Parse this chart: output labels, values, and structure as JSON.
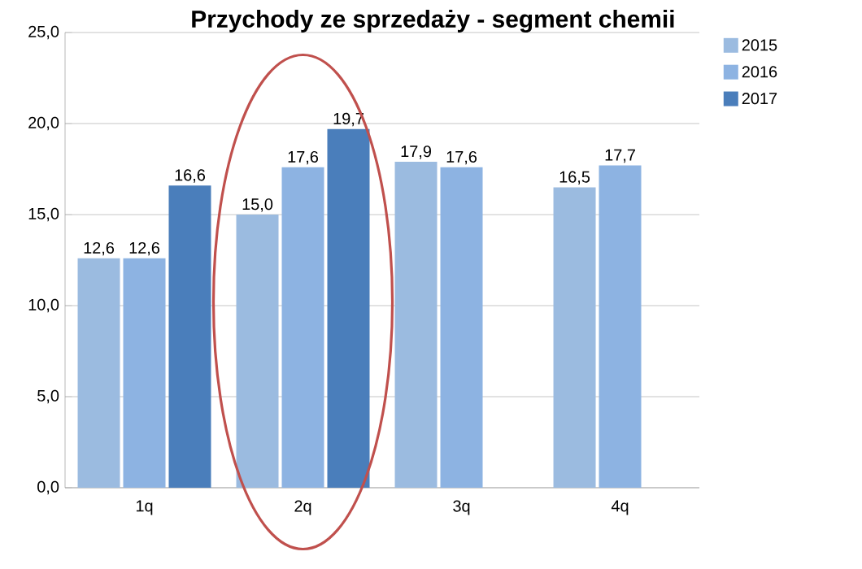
{
  "chart_data": {
    "type": "bar",
    "title": "Przychody ze sprzedaży - segment chemii",
    "categories": [
      "1q",
      "2q",
      "3q",
      "4q"
    ],
    "series": [
      {
        "name": "2015",
        "color": "#9bbbe0",
        "values": [
          12.6,
          15.0,
          17.9,
          16.5
        ],
        "value_labels": [
          "12,6",
          "15,0",
          "17,9",
          "16,5"
        ]
      },
      {
        "name": "2016",
        "color": "#8db3e2",
        "values": [
          12.6,
          17.6,
          17.6,
          17.7
        ],
        "value_labels": [
          "12,6",
          "17,6",
          "17,6",
          "17,7"
        ]
      },
      {
        "name": "2017",
        "color": "#4a7ebb",
        "values": [
          16.6,
          19.7,
          null,
          null
        ],
        "value_labels": [
          "16,6",
          "19,7",
          null,
          null
        ]
      }
    ],
    "ylim": [
      0,
      25
    ],
    "yticks": [
      {
        "value": 0,
        "label": "0,0"
      },
      {
        "value": 5,
        "label": "5,0"
      },
      {
        "value": 10,
        "label": "10,0"
      },
      {
        "value": 15,
        "label": "15,0"
      },
      {
        "value": 20,
        "label": "20,0"
      },
      {
        "value": 25,
        "label": "25,0"
      }
    ],
    "grid": "y",
    "legend": "top right"
  }
}
